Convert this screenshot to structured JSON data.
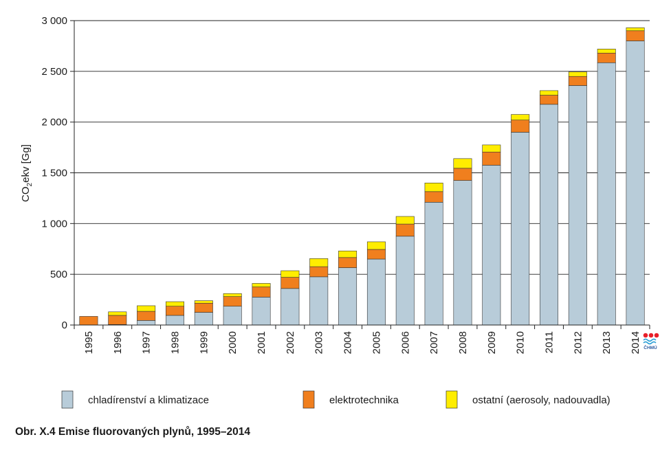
{
  "chart_data": {
    "type": "bar",
    "stacked": true,
    "categories": [
      "1995",
      "1996",
      "1997",
      "1998",
      "1999",
      "2000",
      "2001",
      "2002",
      "2003",
      "2004",
      "2005",
      "2006",
      "2007",
      "2008",
      "2009",
      "2010",
      "2011",
      "2012",
      "2013",
      "2014"
    ],
    "series": [
      {
        "name": "chladírenství a klimatizace",
        "color": "#b8ccd9",
        "values": [
          0,
          5,
          45,
          95,
          125,
          185,
          275,
          360,
          475,
          565,
          650,
          875,
          1210,
          1425,
          1575,
          1900,
          2175,
          2360,
          2585,
          2800
        ]
      },
      {
        "name": "elektrotechnika",
        "color": "#f07f1e",
        "values": [
          85,
          90,
          90,
          90,
          90,
          95,
          100,
          110,
          100,
          100,
          95,
          120,
          105,
          120,
          130,
          120,
          90,
          90,
          95,
          100
        ]
      },
      {
        "name": "ostatní (aerosoly, nadouvadla)",
        "color": "#ffed00",
        "values": [
          0,
          35,
          55,
          45,
          25,
          30,
          35,
          65,
          80,
          65,
          75,
          75,
          85,
          95,
          70,
          55,
          45,
          45,
          40,
          30
        ]
      }
    ],
    "ylabel": "CO2ekv [Gg]",
    "ylabel_main": "CO",
    "ylabel_sub": "2",
    "ylabel_rest": "ekv [Gg]",
    "ylim": [
      0,
      3000
    ],
    "yticks": [
      0,
      500,
      1000,
      1500,
      2000,
      2500,
      3000
    ],
    "ytick_labels": [
      "0",
      "500",
      "1 000",
      "1 500",
      "2 000",
      "2 500",
      "3 000"
    ],
    "grid": true,
    "legend_position": "bottom"
  },
  "caption": "Obr. X.4  Emise fluorovaných plynů, 1995–2014",
  "logo": {
    "text": "ČHMÚ",
    "dot_color": "#e8202a",
    "wave_color": "#2a9fd6"
  }
}
